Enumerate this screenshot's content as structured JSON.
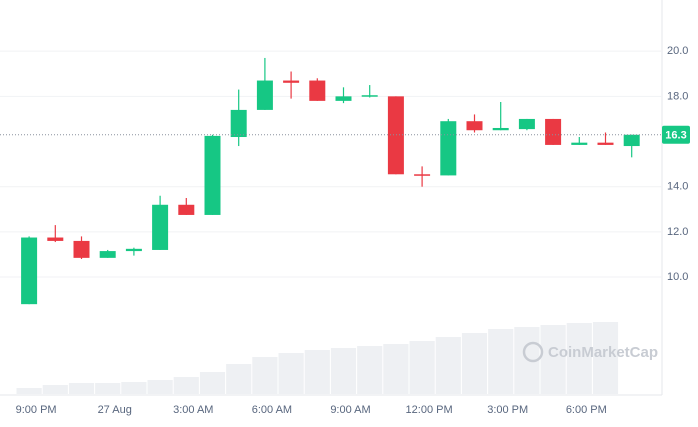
{
  "chart_data": {
    "type": "candlestick",
    "categories": [
      "9:00 PM",
      null,
      null,
      "27 Aug",
      null,
      null,
      "3:00 AM",
      null,
      null,
      "6:00 AM",
      null,
      null,
      "9:00 AM",
      null,
      null,
      "12:00 PM",
      null,
      null,
      "3:00 PM",
      null,
      null,
      "6:00 PM",
      null,
      null
    ],
    "open": [
      8.8,
      11.75,
      11.6,
      10.85,
      11.15,
      11.2,
      13.2,
      12.75,
      16.2,
      17.4,
      18.7,
      18.7,
      17.8,
      18.0,
      18.0,
      14.55,
      14.5,
      16.9,
      16.5,
      16.55,
      17.0,
      15.85,
      15.95,
      15.8
    ],
    "close": [
      11.75,
      11.6,
      10.85,
      11.15,
      11.25,
      13.2,
      12.75,
      16.25,
      17.4,
      18.7,
      18.6,
      17.8,
      18.0,
      18.05,
      14.55,
      14.5,
      16.9,
      16.5,
      16.6,
      17.0,
      15.85,
      15.95,
      15.85,
      16.3
    ],
    "high": [
      11.8,
      12.3,
      11.8,
      11.2,
      11.3,
      13.6,
      13.5,
      16.3,
      18.3,
      19.7,
      19.1,
      18.8,
      18.4,
      18.5,
      18.0,
      14.9,
      17.0,
      17.2,
      17.75,
      17.0,
      17.0,
      16.2,
      16.4,
      16.3
    ],
    "low": [
      8.8,
      11.55,
      10.8,
      10.85,
      10.95,
      11.2,
      12.75,
      12.75,
      15.8,
      17.4,
      17.9,
      17.8,
      17.7,
      17.95,
      14.55,
      14.0,
      14.5,
      16.4,
      16.5,
      16.5,
      15.85,
      15.85,
      15.85,
      15.3
    ],
    "volume": [
      6,
      9,
      11,
      11,
      12,
      14,
      17,
      22,
      30,
      37,
      41,
      44,
      46,
      48,
      50,
      53,
      57,
      61,
      65,
      67,
      69,
      71,
      72,
      null
    ],
    "up_color": "#16c784",
    "down_color": "#ea3943",
    "volume_color": "#eef0f3",
    "ylim": [
      5,
      22
    ],
    "yticks": [
      {
        "value": 10,
        "label": "10.0"
      },
      {
        "value": 12,
        "label": "12.0"
      },
      {
        "value": 14,
        "label": "14.0"
      },
      {
        "value": 18,
        "label": "18.0"
      },
      {
        "value": 20,
        "label": "20.0"
      }
    ],
    "volume_ylim": [
      0,
      100
    ],
    "current_price": 16.3,
    "grid": true,
    "watermark": "CoinMarketCap"
  }
}
